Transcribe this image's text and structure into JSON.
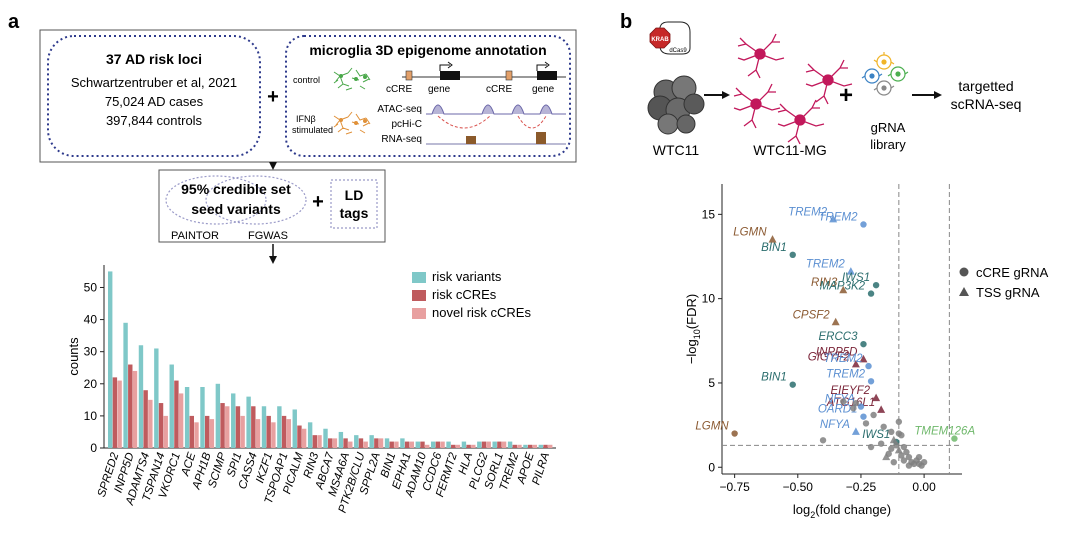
{
  "panel_a": {
    "label": "a",
    "box1": {
      "title": "37 AD risk loci",
      "lines": [
        "Schwartzentruber et al, 2021",
        "75,024 AD cases",
        "397,844 controls"
      ]
    },
    "box2": {
      "title": "microglia 3D epigenome annotation",
      "control": "control",
      "ifnb_1": "IFNβ",
      "ifnb_2": "stimulated",
      "ccre": "cCRE",
      "gene": "gene",
      "tracks": [
        "ATAC-seq",
        "pcHi-C",
        "RNA-seq"
      ]
    },
    "plus": "+",
    "box3": {
      "title_1": "95% credible set",
      "title_2": "seed variants",
      "painter": "PAINTOR",
      "fgwas": "FGWAS"
    },
    "ld_1": "LD",
    "ld_2": "tags"
  },
  "panel_b": {
    "label": "b",
    "krab": "KRAB",
    "dcas9": "dCas9",
    "wtc11": "WTC11",
    "wtc11mg": "WTC11-MG",
    "plus": "+",
    "grna_1": "gRNA",
    "grna_2": "library",
    "target_1": "targetted",
    "target_2": "scRNA-seq"
  },
  "chart_data": [
    {
      "type": "bar",
      "ylabel": "counts",
      "ylim": [
        0,
        57
      ],
      "yticks": [
        0,
        10,
        20,
        30,
        40,
        50
      ],
      "legend_position": "top-right",
      "colors": [
        "#7fc8c8",
        "#bf5b5e",
        "#e8a0a0"
      ],
      "categories": [
        "SPRED2",
        "INPP5D",
        "ADAMTS4",
        "TSPAN14",
        "VKORC1",
        "ACE",
        "APH1B",
        "SCIMP",
        "SPI1",
        "CASS4",
        "IKZF1",
        "TSPOAP1",
        "PICALM",
        "RIN3",
        "ABCA7",
        "MS4A6A",
        "PTK2B/CLU",
        "SPPL2A",
        "BIN1",
        "EPHA1",
        "ADAM10",
        "CCDC6",
        "FERMT2",
        "HLA",
        "PLCG2",
        "SORL1",
        "TREM2",
        "APOE",
        "PILRA"
      ],
      "series": [
        {
          "name": "risk variants",
          "values": [
            55,
            39,
            32,
            31,
            26,
            19,
            19,
            20,
            17,
            16,
            13,
            13,
            12,
            8,
            6,
            5,
            4,
            4,
            3,
            3,
            2,
            2,
            2,
            2,
            2,
            2,
            2,
            1,
            1
          ]
        },
        {
          "name": "risk cCREs",
          "values": [
            22,
            26,
            18,
            14,
            21,
            10,
            10,
            14,
            13,
            13,
            10,
            10,
            7,
            4,
            3,
            3,
            3,
            3,
            2,
            2,
            2,
            2,
            1,
            1,
            2,
            2,
            1,
            1,
            1
          ]
        },
        {
          "name": "novel risk cCREs",
          "values": [
            21,
            24,
            15,
            10,
            17,
            8,
            9,
            13,
            10,
            9,
            8,
            9,
            6,
            4,
            3,
            2,
            2,
            3,
            2,
            2,
            1,
            2,
            1,
            1,
            2,
            2,
            1,
            1,
            1
          ]
        }
      ]
    },
    {
      "type": "scatter",
      "xlabel": "log2(fold change)",
      "ylabel": "-log10(FDR)",
      "xlim": [
        -0.8,
        0.15
      ],
      "ylim": [
        -0.4,
        16.8
      ],
      "xticks": [
        -0.75,
        -0.5,
        -0.25,
        0.0
      ],
      "xtick_labels": [
        "−0.75",
        "−0.50",
        "−0.25",
        "0.00"
      ],
      "yticks": [
        0,
        5,
        10,
        15
      ],
      "threshold_lines": {
        "fdr": 1.3,
        "fold_change": [
          -0.1,
          0.1
        ]
      },
      "legend_position": "right",
      "legend": [
        {
          "name": "cCRE gRNA",
          "shape": "circle"
        },
        {
          "name": "TSS gRNA",
          "shape": "triangle"
        }
      ],
      "colors": {
        "blue": "#5b8fd1",
        "teal": "#2c6e6e",
        "brown": "#8b5a32",
        "maroon": "#7a2438",
        "green": "#6fb86b",
        "grey": "#808080"
      },
      "points": [
        {
          "x": -0.36,
          "y": 14.7,
          "shape": "triangle",
          "color": "blue",
          "label": "TREM2"
        },
        {
          "x": -0.24,
          "y": 14.4,
          "shape": "circle",
          "color": "blue",
          "label": "TREM2"
        },
        {
          "x": -0.6,
          "y": 13.5,
          "shape": "triangle",
          "color": "brown",
          "label": "LGMN"
        },
        {
          "x": -0.52,
          "y": 12.6,
          "shape": "circle",
          "color": "teal",
          "label": "BIN1"
        },
        {
          "x": -0.29,
          "y": 11.6,
          "shape": "triangle",
          "color": "blue",
          "label": "TREM2"
        },
        {
          "x": -0.19,
          "y": 10.8,
          "shape": "circle",
          "color": "teal",
          "label": "IWS1"
        },
        {
          "x": -0.32,
          "y": 10.5,
          "shape": "triangle",
          "color": "brown",
          "label": "RIN3"
        },
        {
          "x": -0.21,
          "y": 10.3,
          "shape": "circle",
          "color": "teal",
          "label": "MAP3K2"
        },
        {
          "x": -0.35,
          "y": 8.6,
          "shape": "triangle",
          "color": "brown",
          "label": "CPSF2"
        },
        {
          "x": -0.24,
          "y": 7.3,
          "shape": "circle",
          "color": "teal",
          "label": "ERCC3"
        },
        {
          "x": -0.24,
          "y": 6.4,
          "shape": "triangle",
          "color": "maroon",
          "label": "INPP5D"
        },
        {
          "x": -0.27,
          "y": 6.1,
          "shape": "triangle",
          "color": "maroon",
          "label": "GIGYF2"
        },
        {
          "x": -0.22,
          "y": 6.0,
          "shape": "circle",
          "color": "blue",
          "label": "TREM2"
        },
        {
          "x": -0.21,
          "y": 5.1,
          "shape": "circle",
          "color": "blue",
          "label": "TREM2"
        },
        {
          "x": -0.52,
          "y": 4.9,
          "shape": "circle",
          "color": "teal",
          "label": "BIN1"
        },
        {
          "x": -0.19,
          "y": 4.1,
          "shape": "triangle",
          "color": "maroon",
          "label": "EIEYF2"
        },
        {
          "x": -0.17,
          "y": 3.4,
          "shape": "triangle",
          "color": "maroon",
          "label": "ATG16L1"
        },
        {
          "x": -0.25,
          "y": 3.6,
          "shape": "circle",
          "color": "blue",
          "label": "NFYA"
        },
        {
          "x": -0.24,
          "y": 3.0,
          "shape": "circle",
          "color": "blue",
          "label": "OARD1"
        },
        {
          "x": -0.27,
          "y": 2.1,
          "shape": "triangle",
          "color": "blue",
          "label": "NFYA"
        },
        {
          "x": -0.75,
          "y": 2.0,
          "shape": "circle",
          "color": "brown",
          "label": "LGMN"
        },
        {
          "x": -0.11,
          "y": 1.5,
          "shape": "circle",
          "color": "teal",
          "label": "IWS1"
        },
        {
          "x": 0.12,
          "y": 1.7,
          "shape": "circle",
          "color": "green",
          "label": "TMEM126A"
        },
        {
          "x": -0.32,
          "y": 3.9,
          "shape": "circle",
          "color": "grey"
        },
        {
          "x": -0.28,
          "y": 3.5,
          "shape": "circle",
          "color": "grey"
        },
        {
          "x": -0.27,
          "y": 3.8,
          "shape": "circle",
          "color": "grey"
        },
        {
          "x": -0.23,
          "y": 2.6,
          "shape": "circle",
          "color": "grey"
        },
        {
          "x": -0.2,
          "y": 3.1,
          "shape": "circle",
          "color": "grey"
        },
        {
          "x": -0.16,
          "y": 2.4,
          "shape": "circle",
          "color": "grey"
        },
        {
          "x": -0.13,
          "y": 2.1,
          "shape": "circle",
          "color": "grey"
        },
        {
          "x": -0.1,
          "y": 2.7,
          "shape": "circle",
          "color": "grey"
        },
        {
          "x": -0.1,
          "y": 2.0,
          "shape": "circle",
          "color": "grey"
        },
        {
          "x": -0.09,
          "y": 1.9,
          "shape": "circle",
          "color": "grey"
        },
        {
          "x": -0.12,
          "y": 1.6,
          "shape": "triangle",
          "color": "grey"
        },
        {
          "x": -0.11,
          "y": 1.3,
          "shape": "circle",
          "color": "grey"
        },
        {
          "x": -0.08,
          "y": 1.2,
          "shape": "circle",
          "color": "grey"
        },
        {
          "x": -0.1,
          "y": 1.0,
          "shape": "triangle",
          "color": "grey"
        },
        {
          "x": -0.07,
          "y": 0.9,
          "shape": "circle",
          "color": "grey"
        },
        {
          "x": -0.09,
          "y": 0.7,
          "shape": "circle",
          "color": "grey"
        },
        {
          "x": -0.06,
          "y": 0.6,
          "shape": "circle",
          "color": "grey"
        },
        {
          "x": -0.08,
          "y": 0.4,
          "shape": "circle",
          "color": "grey"
        },
        {
          "x": -0.05,
          "y": 0.3,
          "shape": "circle",
          "color": "grey"
        },
        {
          "x": -0.04,
          "y": 0.2,
          "shape": "circle",
          "color": "grey"
        },
        {
          "x": -0.02,
          "y": 0.2,
          "shape": "circle",
          "color": "grey"
        },
        {
          "x": -0.01,
          "y": 0.1,
          "shape": "circle",
          "color": "grey"
        },
        {
          "x": 0.0,
          "y": 0.3,
          "shape": "circle",
          "color": "grey"
        },
        {
          "x": -0.03,
          "y": 0.4,
          "shape": "circle",
          "color": "grey"
        },
        {
          "x": -0.06,
          "y": 0.1,
          "shape": "circle",
          "color": "grey"
        },
        {
          "x": -0.13,
          "y": 1.1,
          "shape": "circle",
          "color": "grey"
        },
        {
          "x": -0.14,
          "y": 0.8,
          "shape": "circle",
          "color": "grey"
        },
        {
          "x": -0.17,
          "y": 1.4,
          "shape": "circle",
          "color": "grey"
        },
        {
          "x": -0.15,
          "y": 0.6,
          "shape": "triangle",
          "color": "grey"
        },
        {
          "x": -0.4,
          "y": 1.6,
          "shape": "circle",
          "color": "grey"
        },
        {
          "x": -0.21,
          "y": 1.2,
          "shape": "circle",
          "color": "grey"
        },
        {
          "x": -0.12,
          "y": 0.3,
          "shape": "circle",
          "color": "grey"
        },
        {
          "x": -0.02,
          "y": 0.6,
          "shape": "circle",
          "color": "grey"
        }
      ]
    }
  ]
}
